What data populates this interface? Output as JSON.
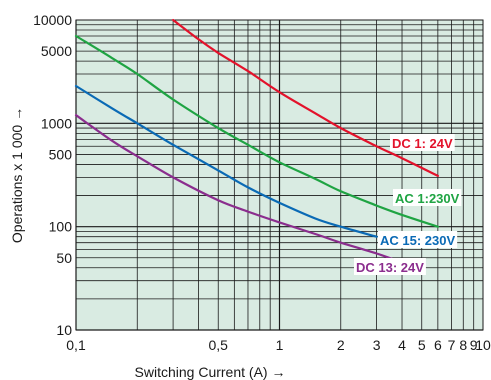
{
  "chart_data": {
    "type": "line",
    "xscale": "log",
    "yscale": "log",
    "xlim": [
      0.1,
      10
    ],
    "ylim": [
      10,
      10000
    ],
    "grid": true,
    "xlabel": "Switching Current (A) →",
    "ylabel": "Operations x 1 000 →",
    "xticks": [
      {
        "value": 0.1,
        "label": "0,1"
      },
      {
        "value": 0.5,
        "label": "0,5"
      },
      {
        "value": 1,
        "label": "1"
      },
      {
        "value": 2,
        "label": "2"
      },
      {
        "value": 3,
        "label": "3"
      },
      {
        "value": 4,
        "label": "4"
      },
      {
        "value": 5,
        "label": "5"
      },
      {
        "value": 6,
        "label": "6"
      },
      {
        "value": 7,
        "label": "7"
      },
      {
        "value": 8,
        "label": "8"
      },
      {
        "value": 9,
        "label": "9"
      },
      {
        "value": 10,
        "label": "10"
      }
    ],
    "yticks": [
      {
        "value": 10,
        "label": "10"
      },
      {
        "value": 50,
        "label": "50"
      },
      {
        "value": 100,
        "label": "100"
      },
      {
        "value": 500,
        "label": "500"
      },
      {
        "value": 1000,
        "label": "1000"
      },
      {
        "value": 5000,
        "label": "5000"
      },
      {
        "value": 10000,
        "label": "10000"
      }
    ],
    "colors": {
      "plot_background": "#d9ebe2",
      "grid": "#1a1a1a",
      "label_background": "#ffffff"
    },
    "series": [
      {
        "name": "DC 1: 24V",
        "color": "#e3122b",
        "x": [
          0.3,
          0.4,
          0.5,
          0.7,
          1.0,
          1.5,
          2.0,
          3.0,
          4.0,
          6.0
        ],
        "y": [
          10000,
          6500,
          4800,
          3200,
          2000,
          1250,
          900,
          600,
          460,
          310
        ]
      },
      {
        "name": "AC 1:230V",
        "color": "#1fa443",
        "x": [
          0.1,
          0.15,
          0.2,
          0.3,
          0.5,
          0.7,
          1.0,
          1.5,
          2.0,
          3.0,
          4.0,
          6.0
        ],
        "y": [
          7000,
          4300,
          3000,
          1700,
          900,
          620,
          420,
          290,
          220,
          160,
          130,
          100
        ]
      },
      {
        "name": "AC 15: 230V",
        "color": "#0a6ab5",
        "x": [
          0.1,
          0.15,
          0.2,
          0.3,
          0.5,
          0.7,
          1.0,
          1.5,
          2.0,
          3.0
        ],
        "y": [
          2300,
          1400,
          1000,
          620,
          350,
          240,
          170,
          120,
          100,
          80
        ]
      },
      {
        "name": "DC 13: 24V",
        "color": "#8b2d8e",
        "x": [
          0.1,
          0.15,
          0.2,
          0.3,
          0.5,
          0.7,
          1.0,
          1.5,
          2.0,
          3.0,
          4.0
        ],
        "y": [
          1200,
          680,
          480,
          300,
          180,
          140,
          110,
          85,
          70,
          55,
          45
        ]
      }
    ]
  }
}
